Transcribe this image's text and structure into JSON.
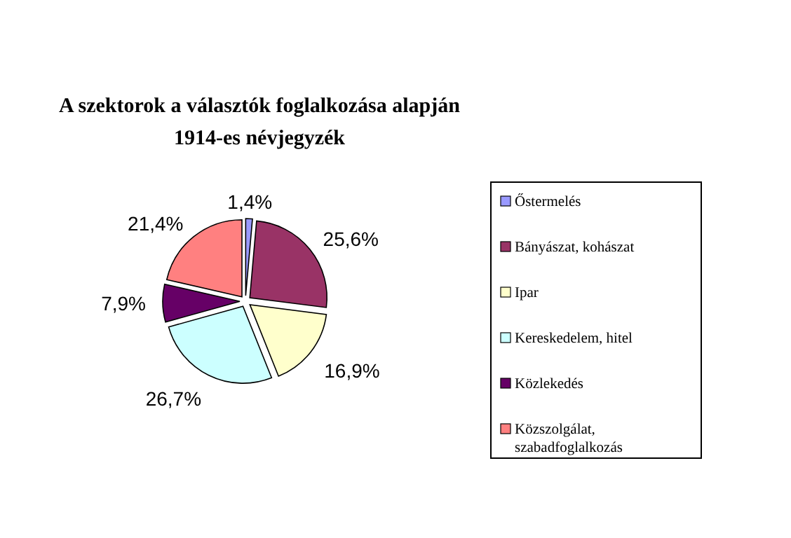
{
  "chart_data": {
    "type": "pie",
    "title": "A szektorok a választók foglalkozása  alapján",
    "subtitle": "1914-es névjegyzék",
    "categories": [
      "Őstermelés",
      "Bányászat, kohászat",
      "Ipar",
      "Kereskedelem, hitel",
      "Közlekedés",
      "Közszolgálat, szabadfoglalkozás"
    ],
    "values": [
      1.4,
      25.6,
      16.9,
      26.7,
      7.9,
      21.4
    ],
    "value_labels": [
      "1,4%",
      "25,6%",
      "16,9%",
      "26,7%",
      "7,9%",
      "21,4%"
    ],
    "colors": [
      "#9999ff",
      "#993366",
      "#ffffcc",
      "#ccffff",
      "#660066",
      "#ff8080"
    ],
    "legend": "right"
  }
}
